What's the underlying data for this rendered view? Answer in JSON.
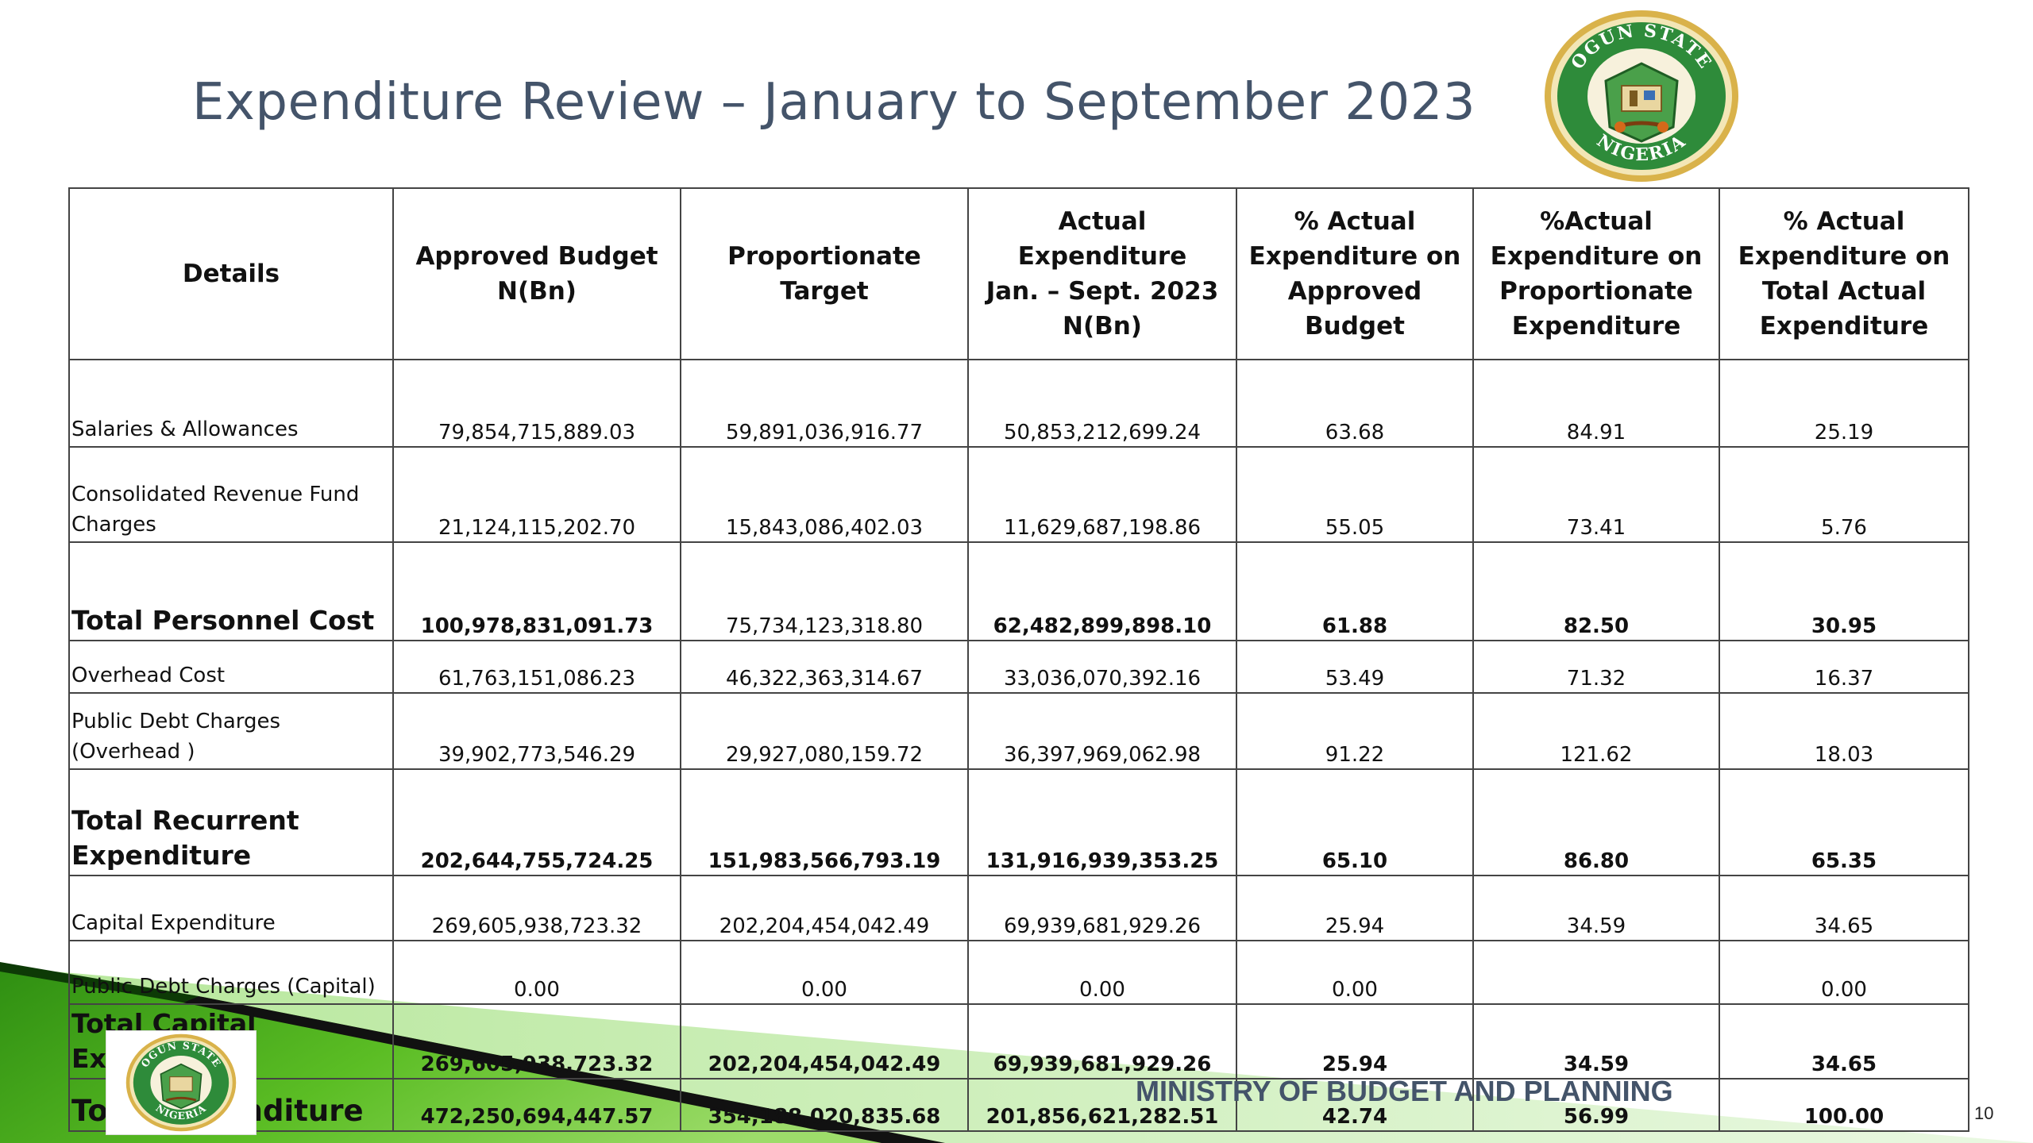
{
  "slide": {
    "title": "Expenditure Review – January to September 2023",
    "ministry": "MINISTRY OF BUDGET AND PLANNING",
    "page_number": "10"
  },
  "logo": {
    "top_text": "OGUN STATE",
    "bottom_text": "NIGERIA",
    "ring_color": "#2e8b3a",
    "gold_color": "#d4a93a"
  },
  "colors": {
    "title": "#44546a",
    "ribbon_green": "#5bbd24",
    "ribbon_light": "#cfeec0",
    "stripe": "#111111"
  },
  "table": {
    "headers": [
      [
        "Details"
      ],
      [
        "Approved Budget",
        "N(Bn)"
      ],
      [
        "Proportionate Target"
      ],
      [
        "Actual Expenditure",
        "Jan. – Sept. 2023",
        "N(Bn)"
      ],
      [
        "% Actual",
        "Expenditure on",
        "Approved Budget"
      ],
      [
        "%Actual",
        "Expenditure on",
        "Proportionate",
        "Expenditure"
      ],
      [
        "% Actual",
        "Expenditure on",
        "Total Actual",
        "Expenditure"
      ]
    ],
    "rows": [
      {
        "label": [
          "Salaries & Allowances"
        ],
        "total": false,
        "grand": false,
        "values": [
          "79,854,715,889.03",
          "59,891,036,916.77",
          "50,853,212,699.24",
          "63.68",
          "84.91",
          "25.19"
        ],
        "bold": [
          false,
          false,
          false,
          false,
          false,
          false
        ]
      },
      {
        "label": [
          "Consolidated Revenue Fund",
          "Charges"
        ],
        "total": false,
        "grand": false,
        "values": [
          "21,124,115,202.70",
          "15,843,086,402.03",
          "11,629,687,198.86",
          "55.05",
          "73.41",
          "5.76"
        ],
        "bold": [
          false,
          false,
          false,
          false,
          false,
          false
        ]
      },
      {
        "label": [
          "Total Personnel Cost"
        ],
        "total": true,
        "grand": false,
        "values": [
          "100,978,831,091.73",
          "75,734,123,318.80",
          "62,482,899,898.10",
          "61.88",
          "82.50",
          "30.95"
        ],
        "bold": [
          true,
          false,
          true,
          true,
          true,
          true
        ]
      },
      {
        "label": [
          "Overhead Cost"
        ],
        "total": false,
        "grand": false,
        "values": [
          "61,763,151,086.23",
          "46,322,363,314.67",
          "33,036,070,392.16",
          "53.49",
          "71.32",
          "16.37"
        ],
        "bold": [
          false,
          false,
          false,
          false,
          false,
          false
        ]
      },
      {
        "label": [
          "Public Debt Charges",
          "(Overhead )"
        ],
        "total": false,
        "grand": false,
        "values": [
          "39,902,773,546.29",
          "29,927,080,159.72",
          "36,397,969,062.98",
          "91.22",
          "121.62",
          "18.03"
        ],
        "bold": [
          false,
          false,
          false,
          false,
          false,
          false
        ]
      },
      {
        "label": [
          "Total Recurrent",
          "Expenditure"
        ],
        "total": true,
        "grand": false,
        "values": [
          "202,644,755,724.25",
          "151,983,566,793.19",
          "131,916,939,353.25",
          "65.10",
          "86.80",
          "65.35"
        ],
        "bold": [
          true,
          true,
          true,
          true,
          true,
          true
        ]
      },
      {
        "label": [
          "Capital Expenditure"
        ],
        "total": false,
        "grand": false,
        "values": [
          "269,605,938,723.32",
          "202,204,454,042.49",
          "69,939,681,929.26",
          "25.94",
          "34.59",
          "34.65"
        ],
        "bold": [
          false,
          false,
          false,
          false,
          false,
          false
        ]
      },
      {
        "label": [
          "Public Debt Charges (Capital)"
        ],
        "total": false,
        "grand": false,
        "values": [
          "0.00",
          "0.00",
          "0.00",
          "0.00",
          "",
          "0.00"
        ],
        "bold": [
          false,
          false,
          false,
          false,
          false,
          false
        ]
      },
      {
        "label": [
          "Total Capital Expenditure"
        ],
        "total": true,
        "grand": false,
        "values": [
          "269,605,938,723.32",
          "202,204,454,042.49",
          "69,939,681,929.26",
          "25.94",
          "34.59",
          "34.65"
        ],
        "bold": [
          true,
          true,
          true,
          true,
          true,
          true
        ]
      },
      {
        "label": [
          "Total Expenditure"
        ],
        "total": true,
        "grand": true,
        "values": [
          "472,250,694,447.57",
          "354,188,020,835.68",
          "201,856,621,282.51",
          "42.74",
          "56.99",
          "100.00"
        ],
        "bold": [
          true,
          true,
          true,
          true,
          true,
          true
        ]
      }
    ]
  }
}
